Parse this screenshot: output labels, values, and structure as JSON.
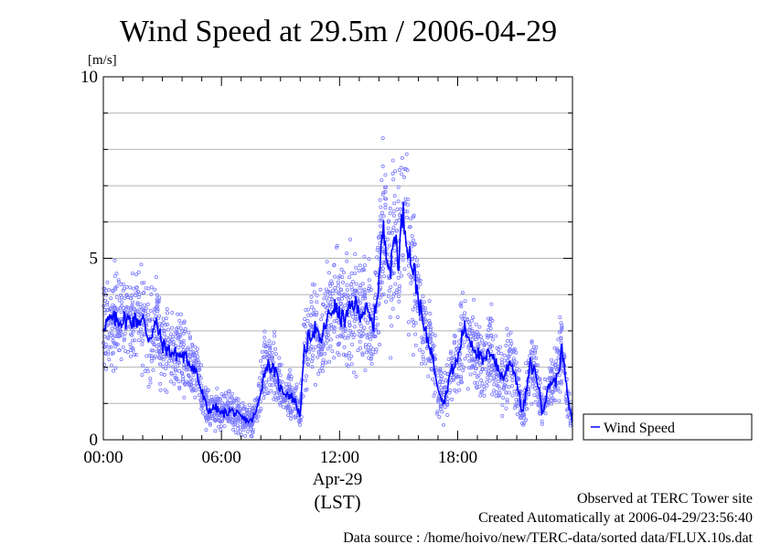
{
  "chart_data": {
    "type": "line",
    "title": "Wind Speed at 29.5m / 2006-04-29",
    "ylabel": "[m/s]",
    "ylim": [
      0,
      10
    ],
    "yticks": [
      0,
      5,
      10
    ],
    "xlim_hours": [
      0,
      23.83
    ],
    "xticks": [
      {
        "hour": 0,
        "label": "00:00"
      },
      {
        "hour": 6,
        "label": "06:00"
      },
      {
        "hour": 12,
        "label": "12:00"
      },
      {
        "hour": 18,
        "label": "18:00"
      }
    ],
    "date_label": "Apr-29",
    "timezone_label": "(LST)",
    "grid": true,
    "legend_position": "right",
    "series": [
      {
        "name": "Wind Speed",
        "color": "#0000ff",
        "scatter_color": "#7b7bff",
        "description": "10-second observations (points) with running mean (line)",
        "x_hours": [
          0.0,
          0.5,
          1.0,
          1.5,
          2.0,
          2.3,
          2.7,
          3.0,
          3.5,
          4.0,
          4.3,
          4.7,
          5.0,
          5.3,
          5.7,
          6.0,
          6.5,
          7.0,
          7.5,
          7.8,
          8.0,
          8.3,
          8.7,
          9.0,
          9.3,
          9.7,
          10.0,
          10.2,
          10.5,
          10.8,
          11.0,
          11.3,
          11.7,
          12.0,
          12.3,
          12.7,
          13.0,
          13.3,
          13.7,
          14.0,
          14.2,
          14.4,
          14.6,
          14.8,
          15.0,
          15.2,
          15.4,
          15.6,
          15.8,
          16.0,
          16.3,
          16.6,
          17.0,
          17.3,
          17.6,
          18.0,
          18.3,
          18.7,
          19.0,
          19.3,
          19.7,
          20.0,
          20.3,
          20.7,
          21.0,
          21.3,
          21.7,
          22.0,
          22.3,
          22.7,
          23.0,
          23.3,
          23.6,
          23.8
        ],
        "values": [
          3.2,
          3.3,
          3.3,
          3.3,
          3.3,
          2.8,
          3.2,
          2.6,
          2.4,
          2.3,
          2.2,
          1.9,
          1.3,
          0.8,
          0.9,
          0.7,
          0.8,
          0.6,
          0.5,
          0.8,
          1.4,
          2.1,
          1.9,
          1.4,
          1.3,
          1.1,
          0.7,
          2.4,
          2.9,
          3.1,
          2.6,
          3.2,
          3.7,
          3.4,
          3.3,
          3.8,
          3.5,
          3.6,
          3.1,
          4.4,
          5.8,
          5.3,
          4.6,
          5.8,
          4.9,
          6.3,
          5.6,
          5.0,
          4.6,
          3.9,
          3.0,
          2.6,
          1.5,
          1.0,
          1.8,
          2.2,
          3.1,
          2.7,
          2.4,
          2.1,
          2.5,
          2.0,
          1.7,
          2.2,
          1.6,
          0.7,
          2.1,
          1.8,
          0.8,
          1.6,
          1.6,
          2.5,
          1.1,
          0.5
        ]
      }
    ]
  },
  "footer": {
    "line1": "Observed at TERC Tower site",
    "line2": "Created Automatically at 2006-04-29/23:56:40",
    "line3": "Data source : /home/hoivo/new/TERC-data/sorted  data/FLUX.10s.dat"
  }
}
